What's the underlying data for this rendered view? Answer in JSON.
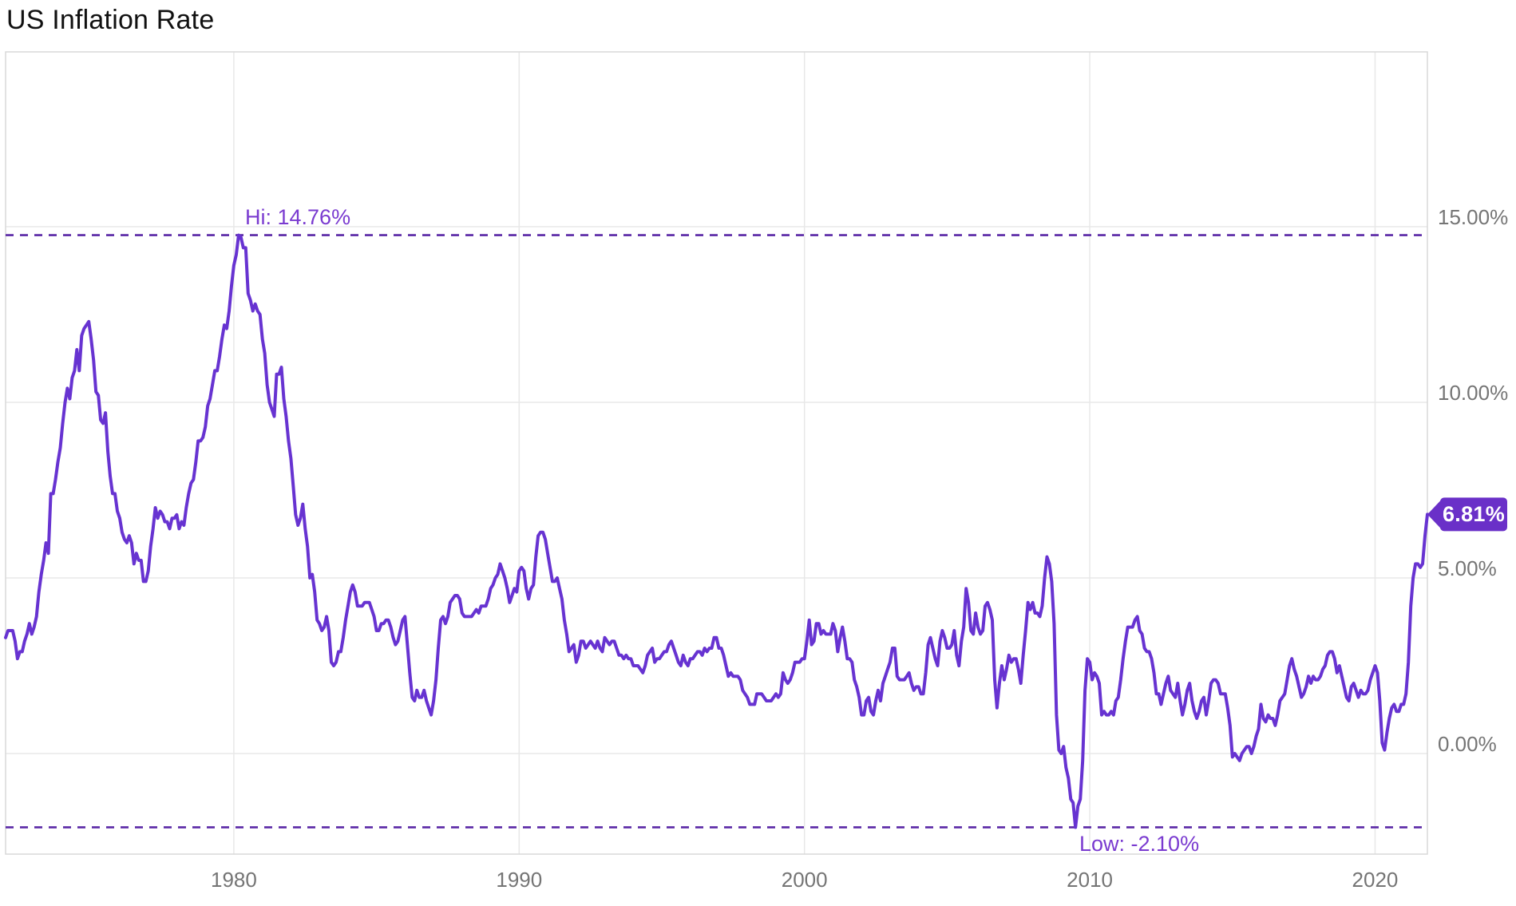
{
  "chart_data": {
    "type": "line",
    "title": "US Inflation Rate",
    "frequency": "monthly",
    "x_domain": {
      "start_year": 1972,
      "start_month": 1,
      "end_year": 2021,
      "end_month": 11
    },
    "x_ticks": [
      {
        "label": "1980",
        "year": 1980
      },
      {
        "label": "1990",
        "year": 1990
      },
      {
        "label": "2000",
        "year": 2000
      },
      {
        "label": "2010",
        "year": 2010
      },
      {
        "label": "2020",
        "year": 2020
      }
    ],
    "y_ticks": [
      {
        "label": "15.00%",
        "value": 15
      },
      {
        "label": "10.00%",
        "value": 10
      },
      {
        "label": "5.00%",
        "value": 5
      },
      {
        "label": "0.00%",
        "value": 0
      }
    ],
    "y_axis_range": [
      -2.86,
      19.95
    ],
    "grid": true,
    "legend_position": "none",
    "annotations": {
      "hi": {
        "label": "Hi: 14.76%",
        "value": 14.76
      },
      "low": {
        "label": "Low: -2.10%",
        "value": -2.1
      }
    },
    "last_value": {
      "label": "6.81%",
      "value": 6.81
    },
    "colors": {
      "line": "#6733D1",
      "dashed": "#5A28A6",
      "annotation_text": "#7A3BD0",
      "badge_bg": "#6A30C8",
      "badge_text": "#ffffff",
      "grid": "#e8e8e8",
      "border": "#d9d9d9",
      "tick_text": "#757575",
      "title_text": "#111111"
    },
    "series": [
      {
        "name": "US Inflation Rate",
        "values": [
          3.3,
          3.5,
          3.5,
          3.5,
          3.2,
          2.7,
          2.9,
          2.9,
          3.2,
          3.4,
          3.7,
          3.4,
          3.6,
          3.9,
          4.6,
          5.1,
          5.5,
          6.0,
          5.7,
          7.4,
          7.4,
          7.8,
          8.3,
          8.7,
          9.4,
          10.0,
          10.4,
          10.1,
          10.7,
          10.9,
          11.5,
          10.9,
          11.9,
          12.1,
          12.2,
          12.3,
          11.8,
          11.2,
          10.3,
          10.2,
          9.5,
          9.4,
          9.7,
          8.6,
          7.9,
          7.4,
          7.4,
          6.9,
          6.7,
          6.3,
          6.1,
          6.0,
          6.2,
          6.0,
          5.4,
          5.7,
          5.5,
          5.5,
          4.9,
          4.9,
          5.2,
          5.9,
          6.4,
          7.0,
          6.7,
          6.9,
          6.8,
          6.6,
          6.6,
          6.4,
          6.7,
          6.7,
          6.8,
          6.4,
          6.6,
          6.5,
          7.0,
          7.4,
          7.7,
          7.8,
          8.3,
          8.9,
          8.9,
          9.0,
          9.3,
          9.9,
          10.1,
          10.5,
          10.9,
          10.9,
          11.3,
          11.8,
          12.2,
          12.1,
          12.6,
          13.3,
          13.9,
          14.2,
          14.76,
          14.7,
          14.4,
          14.4,
          13.1,
          12.9,
          12.6,
          12.8,
          12.6,
          12.5,
          11.8,
          11.4,
          10.5,
          10.0,
          9.8,
          9.6,
          10.8,
          10.8,
          11.0,
          10.1,
          9.6,
          8.9,
          8.4,
          7.6,
          6.8,
          6.5,
          6.7,
          7.1,
          6.4,
          5.9,
          5.0,
          5.1,
          4.6,
          3.8,
          3.7,
          3.5,
          3.6,
          3.9,
          3.5,
          2.6,
          2.5,
          2.6,
          2.9,
          2.9,
          3.3,
          3.8,
          4.2,
          4.6,
          4.8,
          4.6,
          4.2,
          4.2,
          4.2,
          4.3,
          4.3,
          4.3,
          4.1,
          3.9,
          3.5,
          3.5,
          3.7,
          3.7,
          3.8,
          3.8,
          3.6,
          3.3,
          3.1,
          3.2,
          3.5,
          3.8,
          3.9,
          3.1,
          2.3,
          1.6,
          1.5,
          1.8,
          1.6,
          1.6,
          1.8,
          1.5,
          1.3,
          1.1,
          1.5,
          2.1,
          3.0,
          3.8,
          3.9,
          3.7,
          3.9,
          4.3,
          4.4,
          4.5,
          4.5,
          4.4,
          4.0,
          3.9,
          3.9,
          3.9,
          3.9,
          4.0,
          4.1,
          4.0,
          4.2,
          4.2,
          4.2,
          4.4,
          4.7,
          4.8,
          5.0,
          5.1,
          5.4,
          5.2,
          5.0,
          4.7,
          4.3,
          4.5,
          4.7,
          4.6,
          5.2,
          5.3,
          5.2,
          4.7,
          4.4,
          4.7,
          4.8,
          5.6,
          6.2,
          6.3,
          6.3,
          6.1,
          5.7,
          5.3,
          4.9,
          4.9,
          5.0,
          4.7,
          4.4,
          3.8,
          3.4,
          2.9,
          3.0,
          3.1,
          2.6,
          2.8,
          3.2,
          3.2,
          3.0,
          3.1,
          3.2,
          3.1,
          3.0,
          3.2,
          3.0,
          2.9,
          3.3,
          3.2,
          3.1,
          3.2,
          3.2,
          3.0,
          2.8,
          2.8,
          2.7,
          2.8,
          2.7,
          2.7,
          2.5,
          2.5,
          2.5,
          2.4,
          2.3,
          2.5,
          2.8,
          2.9,
          3.0,
          2.6,
          2.7,
          2.7,
          2.8,
          2.9,
          2.9,
          3.1,
          3.2,
          3.0,
          2.8,
          2.6,
          2.5,
          2.8,
          2.6,
          2.5,
          2.7,
          2.7,
          2.8,
          2.9,
          2.9,
          2.8,
          3.0,
          2.9,
          3.0,
          3.0,
          3.3,
          3.3,
          3.0,
          3.0,
          2.8,
          2.5,
          2.2,
          2.3,
          2.2,
          2.2,
          2.2,
          2.1,
          1.8,
          1.7,
          1.6,
          1.4,
          1.4,
          1.4,
          1.7,
          1.7,
          1.7,
          1.6,
          1.5,
          1.5,
          1.5,
          1.6,
          1.7,
          1.6,
          1.7,
          2.3,
          2.1,
          2.0,
          2.1,
          2.3,
          2.6,
          2.6,
          2.6,
          2.7,
          2.7,
          3.2,
          3.8,
          3.1,
          3.2,
          3.7,
          3.7,
          3.4,
          3.5,
          3.4,
          3.4,
          3.4,
          3.7,
          3.5,
          2.9,
          3.3,
          3.6,
          3.2,
          2.7,
          2.7,
          2.6,
          2.1,
          1.9,
          1.6,
          1.1,
          1.1,
          1.5,
          1.6,
          1.2,
          1.1,
          1.5,
          1.8,
          1.5,
          2.0,
          2.2,
          2.4,
          2.6,
          3.0,
          3.0,
          2.2,
          2.1,
          2.1,
          2.1,
          2.2,
          2.3,
          2.0,
          1.8,
          1.9,
          1.9,
          1.7,
          1.7,
          2.3,
          3.1,
          3.3,
          3.0,
          2.7,
          2.5,
          3.2,
          3.5,
          3.3,
          3.0,
          3.0,
          3.1,
          3.5,
          2.8,
          2.5,
          3.2,
          3.6,
          4.7,
          4.3,
          3.5,
          3.4,
          4.0,
          3.6,
          3.4,
          3.5,
          4.2,
          4.3,
          4.1,
          3.8,
          2.1,
          1.3,
          2.0,
          2.5,
          2.1,
          2.4,
          2.8,
          2.6,
          2.7,
          2.7,
          2.4,
          2.0,
          2.8,
          3.5,
          4.3,
          4.1,
          4.3,
          4.0,
          4.0,
          3.9,
          4.2,
          5.0,
          5.6,
          5.4,
          4.9,
          3.7,
          1.1,
          0.1,
          0.0,
          0.2,
          -0.4,
          -0.7,
          -1.3,
          -1.4,
          -2.1,
          -1.5,
          -1.3,
          -0.2,
          1.8,
          2.7,
          2.6,
          2.1,
          2.3,
          2.2,
          2.0,
          1.1,
          1.2,
          1.1,
          1.1,
          1.2,
          1.1,
          1.5,
          1.6,
          2.1,
          2.7,
          3.2,
          3.6,
          3.6,
          3.6,
          3.8,
          3.9,
          3.5,
          3.4,
          3.0,
          2.9,
          2.9,
          2.7,
          2.3,
          1.7,
          1.7,
          1.4,
          1.7,
          2.0,
          2.2,
          1.8,
          1.7,
          1.6,
          2.0,
          1.5,
          1.1,
          1.4,
          1.8,
          2.0,
          1.5,
          1.2,
          1.0,
          1.2,
          1.5,
          1.6,
          1.1,
          1.5,
          2.0,
          2.1,
          2.1,
          2.0,
          1.7,
          1.7,
          1.7,
          1.3,
          0.8,
          -0.1,
          0.0,
          -0.1,
          -0.2,
          0.0,
          0.1,
          0.2,
          0.2,
          0.0,
          0.2,
          0.5,
          0.7,
          1.4,
          1.0,
          0.9,
          1.1,
          1.0,
          1.0,
          0.8,
          1.1,
          1.5,
          1.6,
          1.7,
          2.1,
          2.5,
          2.7,
          2.4,
          2.2,
          1.9,
          1.6,
          1.7,
          1.9,
          2.2,
          2.0,
          2.2,
          2.1,
          2.1,
          2.2,
          2.4,
          2.5,
          2.8,
          2.9,
          2.9,
          2.7,
          2.3,
          2.5,
          2.2,
          1.9,
          1.6,
          1.5,
          1.9,
          2.0,
          1.8,
          1.6,
          1.8,
          1.7,
          1.7,
          1.8,
          2.1,
          2.3,
          2.5,
          2.3,
          1.5,
          0.3,
          0.1,
          0.6,
          1.0,
          1.3,
          1.4,
          1.2,
          1.2,
          1.4,
          1.4,
          1.7,
          2.6,
          4.2,
          5.0,
          5.4,
          5.4,
          5.3,
          5.4,
          6.2,
          6.81
        ]
      }
    ]
  }
}
